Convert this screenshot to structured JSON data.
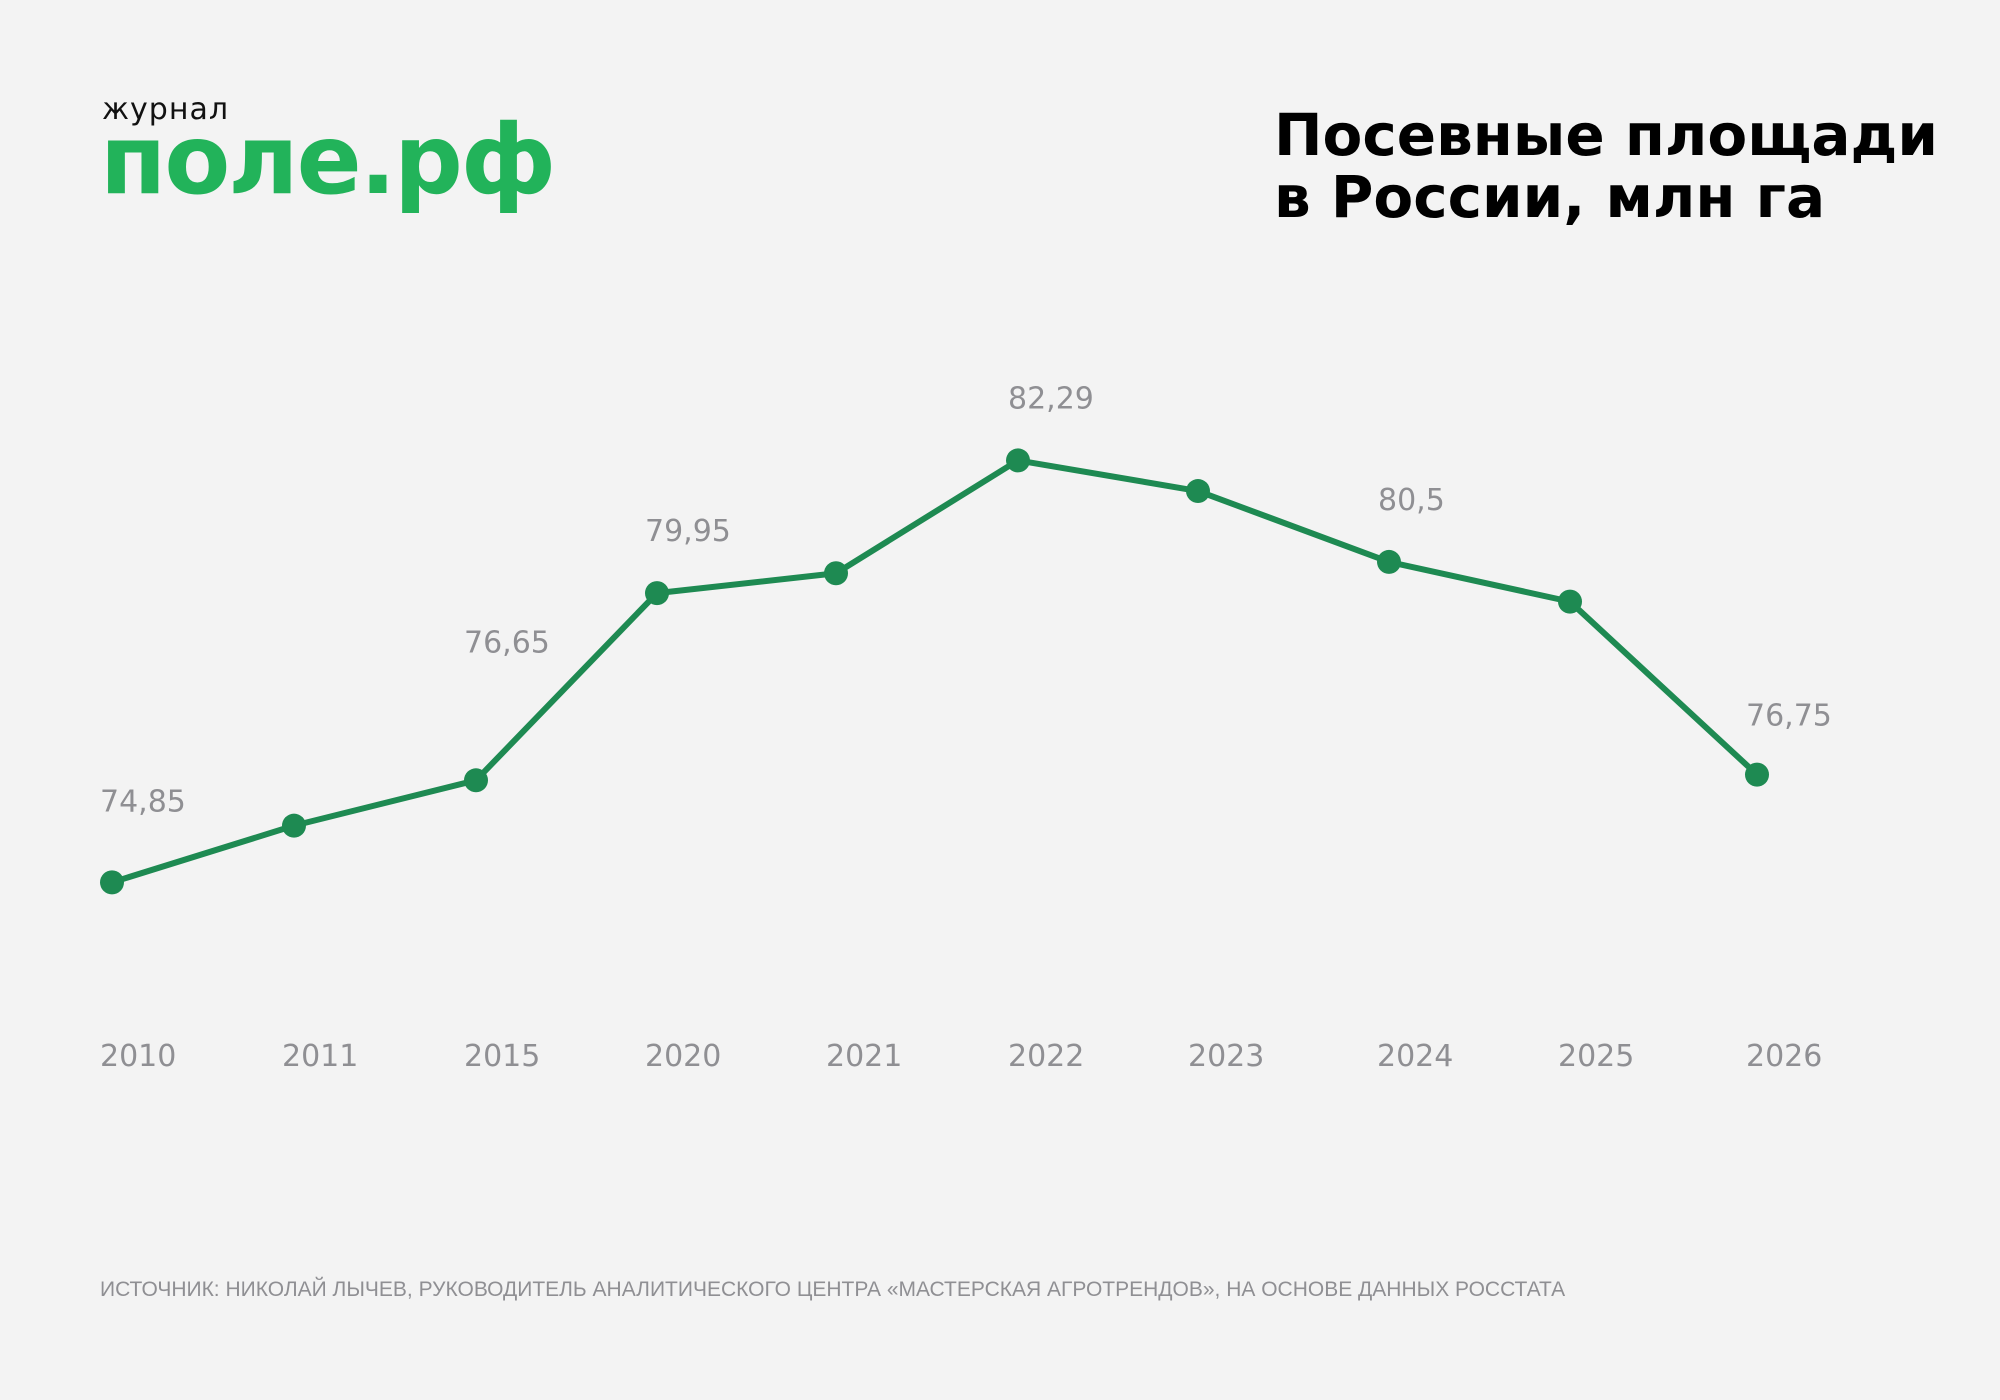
{
  "logo": {
    "caption": "журнал",
    "word": "поле.рф",
    "color": "#22b35a"
  },
  "title": {
    "line1": "Посевные площади",
    "line2": "в России, млн га"
  },
  "source": "ИСТОЧНИК: НИКОЛАЙ ЛЫЧЕВ, РУКОВОДИТЕЛЬ АНАЛИТИЧЕСКОГО ЦЕНТРА «МАСТЕРСКАЯ АГРОТРЕНДОВ», НА ОСНОВЕ ДАННЫХ РОССТАТА",
  "chart_data": {
    "type": "line",
    "title": "Посевные площади в России, млн га",
    "categories": [
      "2010",
      "2011",
      "2015",
      "2020",
      "2021",
      "2022",
      "2023",
      "2024",
      "2025",
      "2026"
    ],
    "series": [
      {
        "values": [
          74.85,
          75.85,
          76.65,
          79.95,
          80.3,
          82.29,
          81.75,
          80.5,
          79.8,
          76.75
        ],
        "color": "#1e8a52"
      }
    ],
    "data_labels": [
      {
        "index": 0,
        "text": "74,85"
      },
      {
        "index": 2,
        "text": "76,65"
      },
      {
        "index": 3,
        "text": "79,95"
      },
      {
        "index": 5,
        "text": "82,29"
      },
      {
        "index": 7,
        "text": "80,5"
      },
      {
        "index": 9,
        "text": "76,75"
      }
    ],
    "ylim": [
      72,
      86
    ],
    "grid": false,
    "legend": false,
    "label_color": "#8f8f93"
  }
}
